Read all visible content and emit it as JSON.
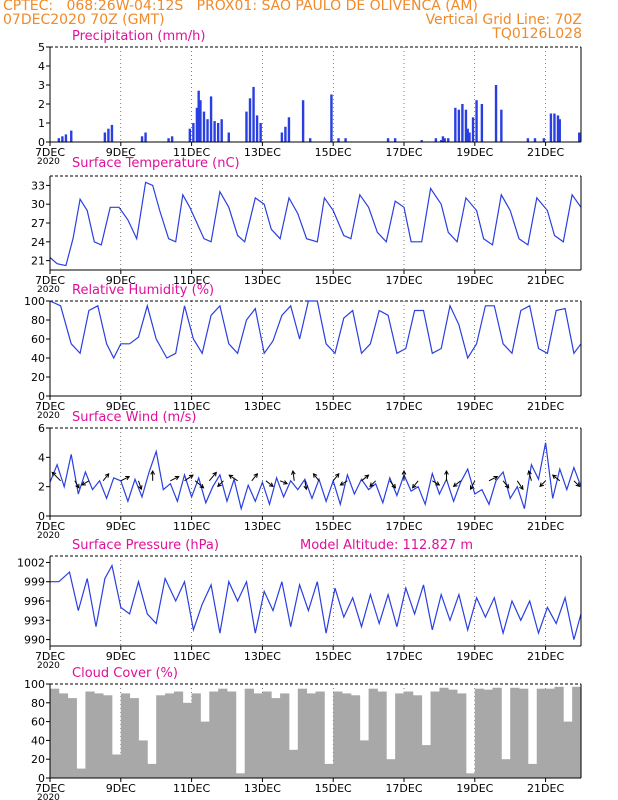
{
  "header": {
    "line1": "CPTEC:   068:26W-04:12S   PROX01: SAO PAULO DE OLIVENCA (AM)",
    "line2_left": "07DEC2020 70Z (GMT)",
    "line2_right": "Vertical Grid Line: 70Z",
    "line3_right": "TQ0126L028"
  },
  "colors": {
    "header": "#f08a2a",
    "title": "#e0109a",
    "series": "#2a3fe0",
    "cloud": "#a8a8a8",
    "axis": "#000000"
  },
  "x_axis": {
    "ticks": [
      "7DEC",
      "9DEC",
      "11DEC",
      "13DEC",
      "15DEC",
      "17DEC",
      "19DEC",
      "21DEC"
    ],
    "tick_days": [
      7,
      9,
      11,
      13,
      15,
      17,
      19,
      21
    ],
    "range_days": [
      7,
      22
    ],
    "year_label": "2020"
  },
  "chart_data": [
    {
      "type": "bar",
      "title": "Precipitation (mm/h)",
      "ylim": [
        0,
        5
      ],
      "yticks": [
        "0",
        "1",
        "2",
        "3",
        "4",
        "5"
      ],
      "x": [
        7.25,
        7.35,
        7.45,
        7.6,
        8.55,
        8.65,
        8.75,
        9.6,
        9.7,
        10.35,
        10.45,
        10.95,
        11.05,
        11.15,
        11.2,
        11.25,
        11.35,
        11.45,
        11.55,
        11.65,
        11.75,
        11.85,
        12.05,
        12.55,
        12.65,
        12.75,
        12.85,
        12.95,
        13.55,
        13.65,
        13.75,
        14.15,
        14.35,
        14.95,
        15.15,
        15.35,
        16.55,
        16.75,
        17.5,
        17.9,
        18.05,
        18.1,
        18.15,
        18.25,
        18.45,
        18.55,
        18.65,
        18.75,
        18.8,
        18.85,
        18.95,
        19.05,
        19.2,
        19.6,
        19.75,
        20.5,
        20.7,
        20.95,
        21.15,
        21.25,
        21.35,
        21.4,
        21.95
      ],
      "values": [
        0.2,
        0.3,
        0.4,
        0.6,
        0.5,
        0.7,
        0.9,
        0.3,
        0.5,
        0.2,
        0.3,
        0.7,
        1.0,
        1.8,
        2.7,
        2.2,
        1.6,
        1.2,
        2.4,
        1.1,
        1.0,
        1.2,
        0.5,
        1.6,
        2.3,
        2.9,
        1.4,
        1.0,
        0.5,
        0.8,
        1.3,
        2.2,
        0.2,
        2.5,
        0.2,
        0.2,
        0.2,
        0.2,
        0.1,
        0.2,
        0.1,
        0.3,
        0.2,
        0.2,
        1.8,
        1.7,
        2.0,
        1.7,
        0.7,
        0.5,
        1.3,
        2.2,
        2.0,
        3.0,
        1.7,
        0.2,
        0.2,
        0.2,
        1.5,
        1.5,
        1.4,
        1.2,
        0.5
      ]
    },
    {
      "type": "line",
      "title": "Surface Temperature (nC)",
      "ylim": [
        19.5,
        34.5
      ],
      "yticks": [
        "21",
        "24",
        "27",
        "30",
        "33"
      ],
      "series": [
        {
          "x": [
            7.0,
            7.2,
            7.45,
            7.65,
            7.85,
            8.05,
            8.25,
            8.45,
            8.7,
            8.95,
            9.2,
            9.45,
            9.7,
            9.9,
            10.1,
            10.35,
            10.55,
            10.75,
            10.95,
            11.15,
            11.35,
            11.55,
            11.8,
            12.05,
            12.3,
            12.5,
            12.8,
            13.05,
            13.25,
            13.5,
            13.75,
            14.0,
            14.25,
            14.55,
            14.75,
            15.0,
            15.3,
            15.5,
            15.75,
            16.0,
            16.25,
            16.5,
            16.75,
            17.0,
            17.2,
            17.5,
            17.75,
            18.05,
            18.25,
            18.5,
            18.75,
            19.05,
            19.25,
            19.5,
            19.75,
            20.0,
            20.25,
            20.5,
            20.75,
            21.05,
            21.25,
            21.5,
            21.75,
            22.0
          ],
          "y": [
            21.5,
            20.5,
            20.2,
            24.5,
            30.8,
            29.0,
            24.0,
            23.5,
            29.5,
            29.5,
            27.5,
            24.5,
            33.5,
            33.0,
            29.0,
            24.5,
            24.0,
            31.5,
            29.5,
            27.0,
            24.5,
            24.0,
            32.0,
            29.5,
            25.0,
            24.0,
            31.0,
            30.0,
            26.0,
            24.5,
            31.0,
            28.5,
            24.5,
            24.0,
            31.0,
            29.0,
            25.0,
            24.5,
            31.5,
            29.5,
            25.5,
            24.0,
            30.5,
            29.5,
            24.0,
            24.0,
            32.5,
            30.0,
            25.5,
            24.0,
            31.0,
            29.0,
            24.5,
            23.5,
            31.5,
            29.0,
            24.5,
            23.5,
            31.0,
            29.0,
            25.0,
            24.0,
            31.5,
            29.5
          ]
        }
      ]
    },
    {
      "type": "line",
      "title": "Relative Humidity (%)",
      "ylim": [
        0,
        100
      ],
      "yticks": [
        "0",
        "20",
        "40",
        "60",
        "80",
        "100"
      ],
      "series": [
        {
          "x": [
            7.0,
            7.3,
            7.6,
            7.85,
            8.1,
            8.35,
            8.6,
            8.8,
            9.0,
            9.25,
            9.5,
            9.75,
            10.0,
            10.3,
            10.55,
            10.8,
            11.05,
            11.3,
            11.55,
            11.8,
            12.05,
            12.3,
            12.55,
            12.8,
            13.05,
            13.3,
            13.55,
            13.8,
            14.05,
            14.3,
            14.55,
            14.8,
            15.05,
            15.3,
            15.55,
            15.8,
            16.05,
            16.3,
            16.55,
            16.8,
            17.05,
            17.3,
            17.55,
            17.8,
            18.05,
            18.3,
            18.55,
            18.8,
            19.05,
            19.3,
            19.55,
            19.8,
            20.05,
            20.3,
            20.55,
            20.8,
            21.05,
            21.3,
            21.55,
            21.8,
            22.0
          ],
          "y": [
            100,
            95,
            55,
            45,
            90,
            95,
            55,
            40,
            55,
            55,
            62,
            95,
            60,
            40,
            45,
            95,
            60,
            45,
            85,
            95,
            55,
            45,
            80,
            92,
            45,
            58,
            85,
            95,
            60,
            100,
            100,
            55,
            45,
            82,
            90,
            45,
            55,
            90,
            85,
            45,
            50,
            90,
            90,
            45,
            50,
            95,
            75,
            40,
            55,
            95,
            95,
            55,
            45,
            90,
            95,
            50,
            45,
            90,
            92,
            45,
            55
          ]
        }
      ]
    },
    {
      "type": "line",
      "title": "Surface Wind (m/s)",
      "ylim": [
        0,
        6
      ],
      "yticks": [
        "0",
        "2",
        "4",
        "6"
      ],
      "series": [
        {
          "x": [
            7.0,
            7.2,
            7.4,
            7.6,
            7.8,
            8.0,
            8.2,
            8.4,
            8.6,
            8.8,
            9.0,
            9.2,
            9.4,
            9.6,
            9.8,
            10.0,
            10.2,
            10.4,
            10.6,
            10.8,
            11.0,
            11.2,
            11.4,
            11.6,
            11.8,
            12.0,
            12.2,
            12.4,
            12.6,
            12.8,
            13.0,
            13.2,
            13.4,
            13.6,
            13.8,
            14.0,
            14.2,
            14.4,
            14.6,
            14.8,
            15.0,
            15.2,
            15.4,
            15.6,
            15.8,
            16.0,
            16.2,
            16.4,
            16.6,
            16.8,
            17.0,
            17.2,
            17.4,
            17.6,
            17.8,
            18.0,
            18.2,
            18.4,
            18.6,
            18.8,
            19.0,
            19.2,
            19.4,
            19.6,
            19.8,
            20.0,
            20.2,
            20.4,
            20.6,
            20.8,
            21.0,
            21.2,
            21.4,
            21.6,
            21.8,
            22.0
          ],
          "y": [
            2.3,
            3.5,
            2.0,
            4.2,
            1.5,
            3.0,
            1.8,
            2.4,
            1.2,
            2.6,
            2.4,
            1.0,
            2.5,
            1.3,
            3.0,
            4.4,
            1.8,
            2.2,
            1.0,
            2.8,
            1.3,
            2.6,
            0.9,
            2.0,
            2.8,
            1.0,
            2.5,
            0.5,
            2.1,
            1.0,
            2.3,
            0.8,
            2.6,
            1.3,
            2.4,
            1.8,
            2.5,
            1.2,
            2.5,
            1.0,
            2.4,
            0.8,
            2.8,
            1.5,
            2.5,
            1.8,
            2.2,
            0.9,
            2.6,
            1.4,
            2.8,
            1.7,
            2.0,
            0.8,
            2.9,
            1.5,
            2.5,
            1.0,
            2.3,
            3.2,
            1.5,
            1.8,
            0.8,
            2.4,
            3.0,
            1.2,
            2.0,
            0.5,
            3.5,
            2.5,
            5.0,
            1.2,
            3.2,
            1.8,
            3.3,
            2.0
          ]
        }
      ],
      "vectors": {
        "x": [
          7.3,
          7.7,
          8.1,
          8.5,
          9.0,
          9.5,
          9.9,
          10.4,
          10.8,
          11.1,
          11.5,
          11.9,
          12.3,
          12.7,
          13.1,
          13.5,
          13.9,
          14.2,
          14.6,
          15.0,
          15.4,
          15.8,
          16.2,
          16.6,
          17.0,
          17.4,
          17.8,
          18.2,
          18.6,
          19.0,
          19.4,
          19.8,
          20.2,
          20.6,
          21.0,
          21.4,
          21.8
        ],
        "u": [
          -0.6,
          0.3,
          -0.5,
          0.4,
          0.6,
          0.2,
          0.0,
          0.6,
          0.6,
          0.6,
          0.5,
          -0.4,
          -0.6,
          0.4,
          0.5,
          0.5,
          -0.1,
          0.1,
          -0.4,
          0.4,
          -0.5,
          0.5,
          -0.4,
          0.4,
          0.0,
          -0.4,
          0.5,
          0.0,
          -0.5,
          -0.3,
          0.6,
          0.4,
          0.4,
          -0.2,
          -0.4,
          -0.5,
          0.4
        ],
        "v": [
          0.6,
          -0.5,
          -0.3,
          0.5,
          0.3,
          -0.6,
          0.7,
          0.3,
          0.4,
          -0.5,
          0.6,
          -0.4,
          0.4,
          0.5,
          -0.4,
          -0.2,
          0.7,
          -0.6,
          0.5,
          0.5,
          -0.3,
          0.4,
          -0.4,
          -0.5,
          0.7,
          -0.5,
          -0.3,
          0.7,
          -0.4,
          -0.6,
          0.3,
          -0.5,
          -0.6,
          0.7,
          -0.4,
          0.4,
          -0.4
        ]
      }
    },
    {
      "type": "line",
      "title": "Surface Pressure (hPa)",
      "annotation": "Model Altitude: 112.827 m",
      "ylim": [
        989,
        1003
      ],
      "yticks": [
        "990",
        "993",
        "996",
        "999",
        "1002"
      ],
      "series": [
        {
          "x": [
            7.0,
            7.25,
            7.55,
            7.8,
            8.05,
            8.3,
            8.55,
            8.75,
            9.0,
            9.25,
            9.5,
            9.75,
            10.0,
            10.25,
            10.55,
            10.8,
            11.05,
            11.3,
            11.55,
            11.8,
            12.05,
            12.3,
            12.55,
            12.8,
            13.05,
            13.3,
            13.55,
            13.8,
            14.05,
            14.3,
            14.55,
            14.8,
            15.05,
            15.3,
            15.55,
            15.8,
            16.05,
            16.3,
            16.55,
            16.8,
            17.05,
            17.3,
            17.55,
            17.8,
            18.05,
            18.3,
            18.55,
            18.8,
            19.05,
            19.3,
            19.55,
            19.8,
            20.05,
            20.3,
            20.55,
            20.8,
            21.05,
            21.3,
            21.55,
            21.8,
            22.0
          ],
          "y": [
            999.0,
            999.0,
            1000.5,
            994.5,
            999.5,
            992.0,
            999.5,
            1001.5,
            995.0,
            994.0,
            999.0,
            994.0,
            992.5,
            999.5,
            996.0,
            999.0,
            991.5,
            995.5,
            998.5,
            991.0,
            999.0,
            996.0,
            999.0,
            991.0,
            997.5,
            994.5,
            999.0,
            992.0,
            998.5,
            994.5,
            999.0,
            991.0,
            998.0,
            993.5,
            996.5,
            992.0,
            997.0,
            992.5,
            997.0,
            992.0,
            998.0,
            994.0,
            998.5,
            991.5,
            997.0,
            993.0,
            997.0,
            991.5,
            996.5,
            993.5,
            996.5,
            991.0,
            996.0,
            993.0,
            996.0,
            991.0,
            995.0,
            992.5,
            996.5,
            990.0,
            994.0
          ]
        }
      ]
    },
    {
      "type": "bar",
      "title": "Cloud Cover (%)",
      "ylim": [
        0,
        100
      ],
      "yticks": [
        "0",
        "20",
        "40",
        "60",
        "80",
        "100"
      ],
      "x": [
        7.0,
        7.25,
        7.5,
        7.75,
        8.0,
        8.25,
        8.5,
        8.75,
        9.0,
        9.25,
        9.5,
        9.75,
        10.0,
        10.25,
        10.5,
        10.75,
        11.0,
        11.25,
        11.5,
        11.75,
        12.0,
        12.25,
        12.5,
        12.75,
        13.0,
        13.25,
        13.5,
        13.75,
        14.0,
        14.25,
        14.5,
        14.75,
        15.0,
        15.25,
        15.5,
        15.75,
        16.0,
        16.25,
        16.5,
        16.75,
        17.0,
        17.25,
        17.5,
        17.75,
        18.0,
        18.25,
        18.5,
        18.75,
        19.0,
        19.25,
        19.5,
        19.75,
        20.0,
        20.25,
        20.5,
        20.75,
        21.0,
        21.25,
        21.5,
        21.75
      ],
      "values": [
        95,
        90,
        85,
        10,
        92,
        90,
        88,
        25,
        90,
        85,
        40,
        15,
        88,
        90,
        92,
        80,
        90,
        60,
        92,
        95,
        92,
        5,
        95,
        90,
        92,
        85,
        90,
        30,
        95,
        90,
        92,
        15,
        92,
        90,
        88,
        40,
        95,
        92,
        20,
        90,
        92,
        88,
        35,
        92,
        96,
        94,
        90,
        5,
        95,
        94,
        96,
        20,
        96,
        95,
        15,
        95,
        95,
        97,
        60,
        97
      ]
    }
  ]
}
